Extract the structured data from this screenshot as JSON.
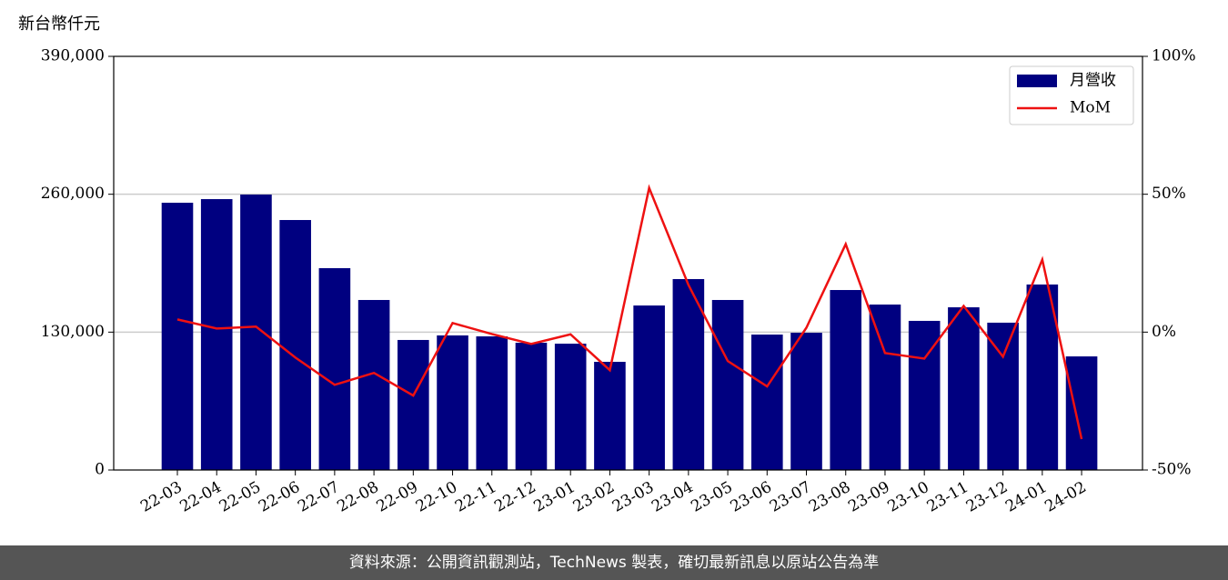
{
  "chart_data": {
    "type": "bar_line",
    "ylabel": "新台幣仟元",
    "categories": [
      "22-03",
      "22-04",
      "22-05",
      "22-06",
      "22-07",
      "22-08",
      "22-09",
      "22-10",
      "22-11",
      "22-12",
      "23-01",
      "23-02",
      "23-03",
      "23-04",
      "23-05",
      "23-06",
      "23-07",
      "23-08",
      "23-09",
      "23-10",
      "23-11",
      "23-12",
      "24-01",
      "24-02"
    ],
    "series": [
      {
        "name": "月營收",
        "type": "bar",
        "color": "#000080",
        "values": [
          252000,
          255400,
          259700,
          235700,
          190300,
          160300,
          122600,
          126900,
          126000,
          120000,
          119100,
          102000,
          155100,
          180000,
          160300,
          127700,
          129400,
          169700,
          156000,
          140600,
          153400,
          138900,
          174900,
          107100
        ]
      },
      {
        "name": "MoM",
        "type": "line",
        "color": "#ee1111",
        "axis": "y2",
        "values": [
          4.6,
          1.3,
          2.0,
          -9.2,
          -19.1,
          -14.8,
          -23.0,
          3.3,
          -0.7,
          -4.3,
          -0.8,
          -13.8,
          52.3,
          17.1,
          -10.5,
          -19.7,
          1.6,
          31.9,
          -7.6,
          -9.6,
          9.5,
          -8.9,
          26.3,
          -38.8
        ]
      }
    ],
    "ylim": [
      0,
      390000
    ],
    "yticks": [
      0,
      {
        "value": 130000,
        "label": "130,000"
      },
      {
        "value": 260000,
        "label": "260,000"
      },
      {
        "value": 390000,
        "label": "390,000"
      }
    ],
    "y2lim": [
      -50,
      100
    ],
    "y2ticks": [
      {
        "value": -50,
        "label": "-50%"
      },
      {
        "value": 0,
        "label": "0%"
      },
      {
        "value": 50,
        "label": "50%"
      },
      {
        "value": 100,
        "label": "100%"
      }
    ],
    "grid": true,
    "legend": "upper right",
    "footer": "資料來源：公開資訊觀測站，TechNews 製表，確切最新訊息以原站公告為準"
  }
}
